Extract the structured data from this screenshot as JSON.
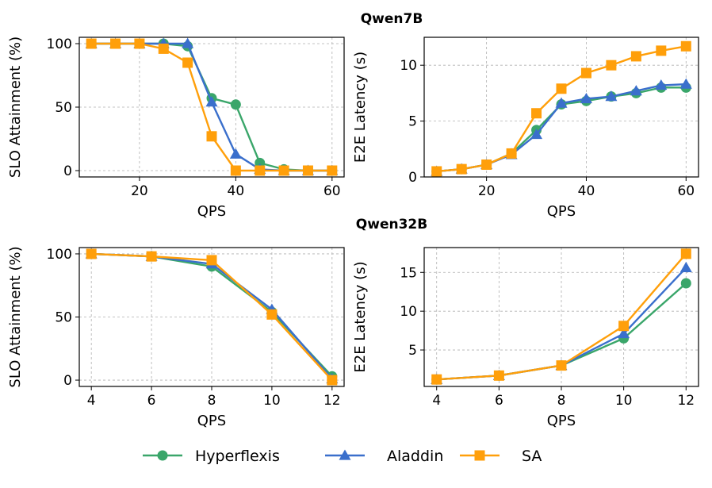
{
  "titles": [
    "Qwen7B",
    "Qwen32B"
  ],
  "colors": {
    "Hyperflexis": "#3aa66a",
    "Aladdin": "#3a6fcc",
    "SA": "#ff9f0a"
  },
  "legend": {
    "items": [
      {
        "name": "Hyperflexis",
        "marker": "circle"
      },
      {
        "name": "Aladdin",
        "marker": "triangle"
      },
      {
        "name": "SA",
        "marker": "square"
      }
    ]
  },
  "chart_data": [
    {
      "type": "line",
      "model": "Qwen7B",
      "xlabel": "QPS",
      "ylabel": "SLO Attainment (%)",
      "xlim": [
        7.5,
        62.5
      ],
      "ylim": [
        -5,
        105
      ],
      "xticks": [
        20,
        40,
        60
      ],
      "yticks": [
        0,
        50,
        100
      ],
      "x": [
        10,
        15,
        20,
        25,
        30,
        35,
        40,
        45,
        50,
        55,
        60
      ],
      "series": [
        {
          "name": "Hyperflexis",
          "values": [
            100,
            100,
            100,
            100,
            98,
            57,
            52,
            6,
            1,
            0,
            0
          ]
        },
        {
          "name": "Aladdin",
          "values": [
            100,
            100,
            100,
            100,
            100,
            54,
            13,
            1,
            0,
            0,
            0
          ]
        },
        {
          "name": "SA",
          "values": [
            100,
            100,
            100,
            96,
            85,
            27,
            0,
            0,
            0,
            0,
            0
          ]
        }
      ]
    },
    {
      "type": "line",
      "model": "Qwen7B",
      "xlabel": "QPS",
      "ylabel": "E2E Latency (s)",
      "xlim": [
        7.5,
        62.5
      ],
      "ylim": [
        0,
        12.5
      ],
      "xticks": [
        20,
        40,
        60
      ],
      "yticks": [
        0,
        5,
        10
      ],
      "x": [
        10,
        15,
        20,
        25,
        30,
        35,
        40,
        45,
        50,
        55,
        60
      ],
      "series": [
        {
          "name": "Hyperflexis",
          "values": [
            0.5,
            0.7,
            1.1,
            2.1,
            4.2,
            6.5,
            6.8,
            7.2,
            7.5,
            8.0,
            8.0
          ]
        },
        {
          "name": "Aladdin",
          "values": [
            0.5,
            0.7,
            1.1,
            2.0,
            3.8,
            6.6,
            7.0,
            7.2,
            7.7,
            8.2,
            8.3
          ]
        },
        {
          "name": "SA",
          "values": [
            0.5,
            0.7,
            1.1,
            2.1,
            5.7,
            7.9,
            9.3,
            10.0,
            10.8,
            11.3,
            11.7
          ]
        }
      ]
    },
    {
      "type": "line",
      "model": "Qwen32B",
      "xlabel": "QPS",
      "ylabel": "SLO Attainment (%)",
      "xlim": [
        3.6,
        12.4
      ],
      "ylim": [
        -5,
        105
      ],
      "xticks": [
        4,
        6,
        8,
        10,
        12
      ],
      "yticks": [
        0,
        50,
        100
      ],
      "x": [
        4,
        6,
        8,
        10,
        12
      ],
      "series": [
        {
          "name": "Hyperflexis",
          "values": [
            100,
            98,
            90,
            54,
            3
          ]
        },
        {
          "name": "Aladdin",
          "values": [
            100,
            98,
            92,
            56,
            1
          ]
        },
        {
          "name": "SA",
          "values": [
            100,
            98,
            95,
            52,
            0
          ]
        }
      ]
    },
    {
      "type": "line",
      "model": "Qwen32B",
      "xlabel": "QPS",
      "ylabel": "E2E Latency (s)",
      "xlim": [
        3.6,
        12.4
      ],
      "ylim": [
        0.3,
        18.2
      ],
      "xticks": [
        4,
        6,
        8,
        10,
        12
      ],
      "yticks": [
        5,
        10,
        15
      ],
      "x": [
        4,
        6,
        8,
        10,
        12
      ],
      "series": [
        {
          "name": "Hyperflexis",
          "values": [
            1.2,
            1.7,
            3.0,
            6.5,
            13.6
          ]
        },
        {
          "name": "Aladdin",
          "values": [
            1.2,
            1.7,
            3.0,
            7.1,
            15.6
          ]
        },
        {
          "name": "SA",
          "values": [
            1.2,
            1.7,
            3.0,
            8.1,
            17.4
          ]
        }
      ]
    }
  ]
}
